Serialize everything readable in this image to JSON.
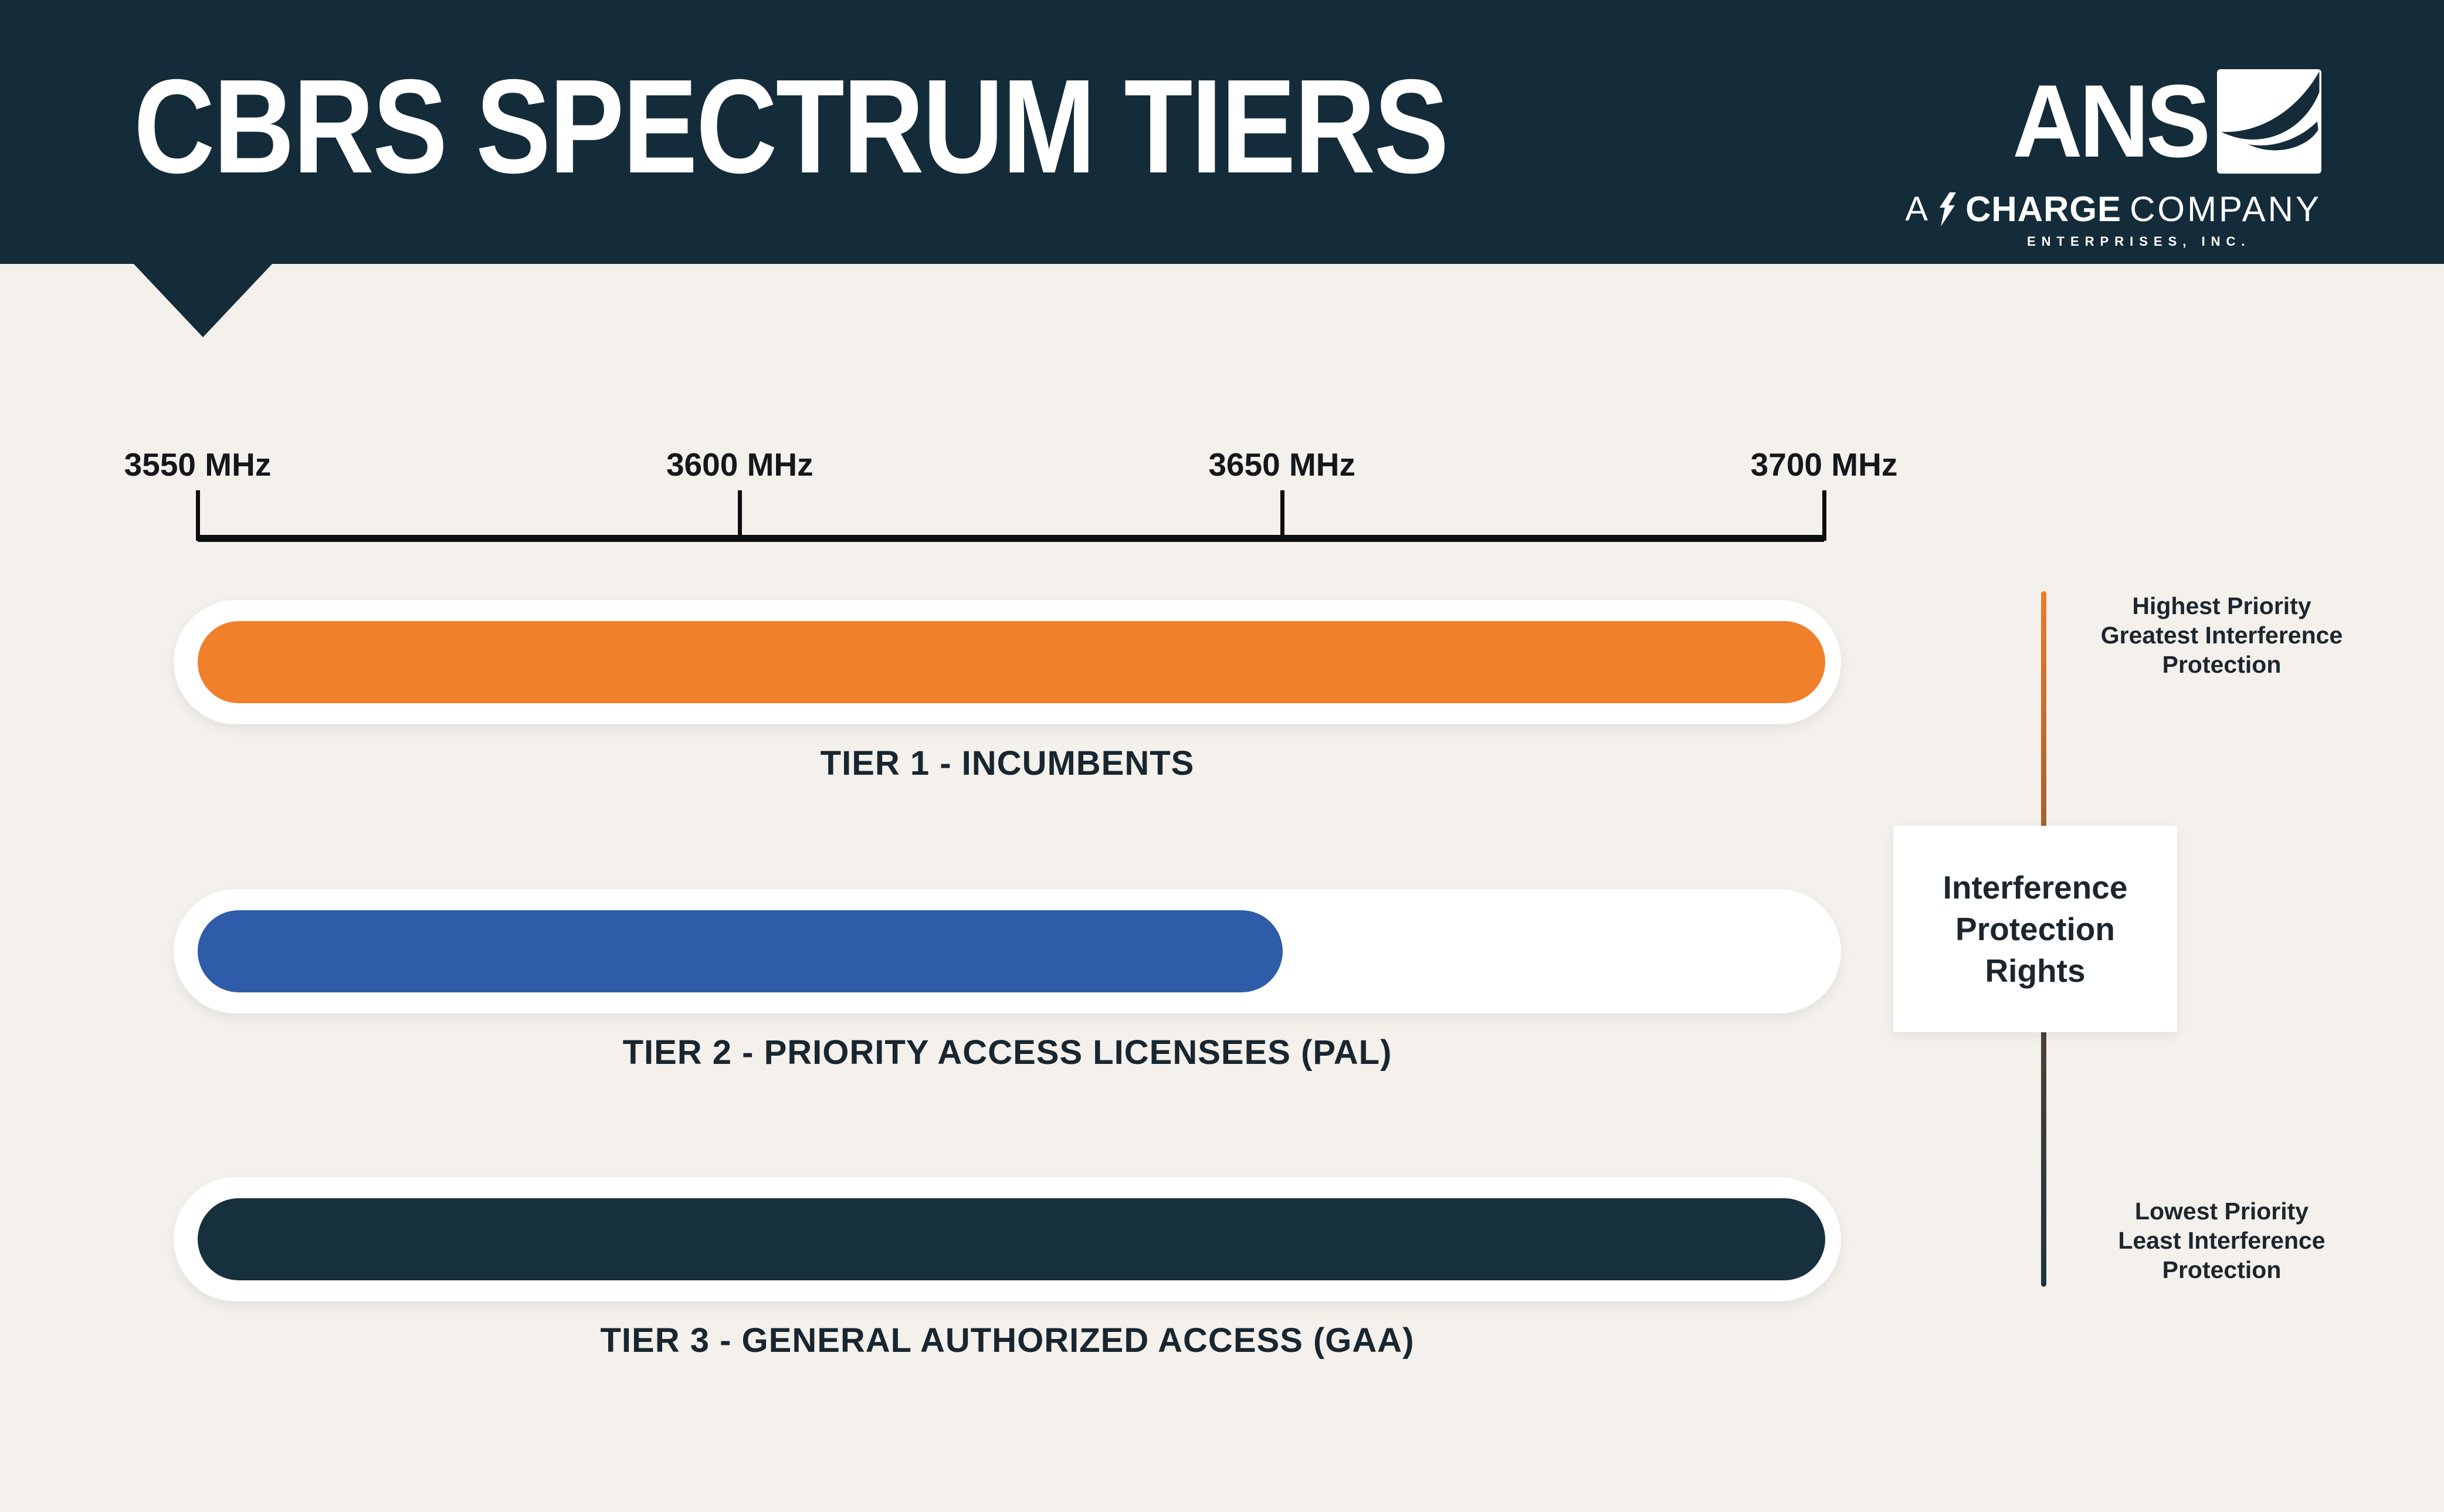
{
  "page": {
    "background": "#F4F0EB",
    "header_background": "#142C3A"
  },
  "header": {
    "title": "CBRS SPECTRUM TIERS",
    "logo": {
      "brand": "ANS",
      "tagline_prefix": "A",
      "tagline_bold": "CHARGE",
      "tagline_suffix": "COMPANY",
      "tagline_sub": "ENTERPRISES, INC."
    }
  },
  "axis": {
    "labels": [
      "3550 MHz",
      "3600 MHz",
      "3650 MHz",
      "3700 MHz"
    ]
  },
  "tiers": [
    {
      "label": "TIER 1 - INCUMBENTS",
      "color": "#F0802A",
      "start_mhz": 3550,
      "end_mhz": 3700
    },
    {
      "label": "TIER 2 - PRIORITY ACCESS LICENSEES (PAL)",
      "color": "#2F5CA9",
      "start_mhz": 3550,
      "end_mhz": 3650
    },
    {
      "label": "TIER 3 - GENERAL AUTHORIZED ACCESS (GAA)",
      "color": "#17303E",
      "start_mhz": 3550,
      "end_mhz": 3700
    }
  ],
  "priority_scale": {
    "top_caption_lines": [
      "Highest Priority",
      "Greatest Interference",
      "Protection"
    ],
    "box_lines": [
      "Interference",
      "Protection",
      "Rights"
    ],
    "bottom_caption_lines": [
      "Lowest Priority",
      "Least Interference",
      "Protection"
    ],
    "line_top_color": "#EC7C2B",
    "line_bottom_color": "#1E3340"
  },
  "chart_data": {
    "type": "bar",
    "orientation": "horizontal-range",
    "title": "CBRS SPECTRUM TIERS",
    "x_axis": {
      "unit": "MHz",
      "range": [
        3550,
        3700
      ],
      "ticks": [
        3550,
        3600,
        3650,
        3700
      ],
      "tick_labels": [
        "3550 MHz",
        "3600 MHz",
        "3650 MHz",
        "3700 MHz"
      ]
    },
    "series": [
      {
        "name": "TIER 1 - INCUMBENTS",
        "start": 3550,
        "end": 3700,
        "color": "#F0802A"
      },
      {
        "name": "TIER 2 - PRIORITY ACCESS LICENSEES (PAL)",
        "start": 3550,
        "end": 3650,
        "color": "#2F5CA9"
      },
      {
        "name": "TIER 3 - GENERAL AUTHORIZED ACCESS (GAA)",
        "start": 3550,
        "end": 3700,
        "color": "#17303E"
      }
    ],
    "annotations": {
      "high_end": "Highest Priority Greatest Interference Protection",
      "scale_label": "Interference Protection Rights",
      "low_end": "Lowest Priority Least Interference Protection"
    },
    "grid": false,
    "legend": false
  }
}
